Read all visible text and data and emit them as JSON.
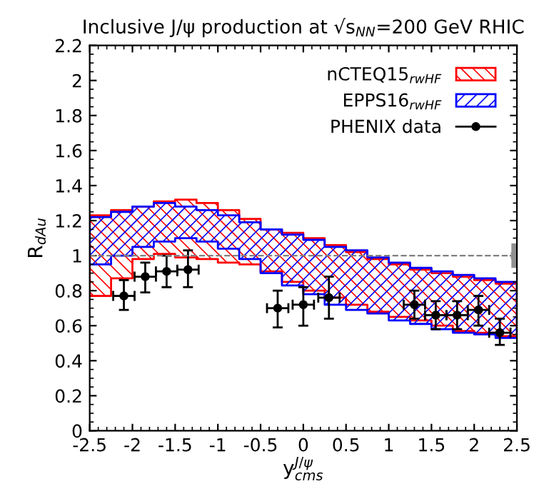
{
  "chart_data": {
    "type": "area",
    "title": "Inclusive J/ψ production at √s$_{NN}$=200 GeV RHIC",
    "xlabel": "y$^{J/ψ}$$_{cms}$",
    "ylabel": "R$_{dAu}$",
    "xlim": [
      -2.5,
      2.5
    ],
    "ylim": [
      0,
      2.2
    ],
    "xticks": [
      -2.5,
      -2,
      -1.5,
      -1,
      -0.5,
      0,
      0.5,
      1,
      1.5,
      2,
      2.5
    ],
    "yticks": [
      0,
      0.2,
      0.4,
      0.6,
      0.8,
      1,
      1.2,
      1.4,
      1.6,
      1.8,
      2,
      2.2
    ],
    "grid": false,
    "legend": "top right",
    "ref_lines": [
      {
        "axis": "y",
        "value": 1,
        "color": "#808080",
        "line_style": "dashed"
      }
    ],
    "series": [
      {
        "name": "nCTEQ15$_{rwHF}$",
        "color": "#ff0000",
        "x": [
          -2.5,
          -2.25,
          -2,
          -1.75,
          -1.5,
          -1.25,
          -1,
          -0.75,
          -0.5,
          -0.25,
          0,
          0.25,
          0.5,
          0.75,
          1,
          1.25,
          1.5,
          1.75,
          2,
          2.25,
          2.5
        ],
        "values": [
          null,
          null,
          null,
          null,
          null,
          null,
          null,
          null,
          null,
          null,
          null,
          null,
          null,
          null,
          null,
          null,
          null,
          null,
          null,
          null,
          null
        ],
        "upper": [
          1.23,
          1.26,
          1.28,
          1.31,
          1.32,
          1.3,
          1.26,
          1.21,
          1.15,
          1.13,
          1.1,
          1.06,
          1.02,
          0.98,
          0.95,
          0.92,
          0.9,
          0.88,
          0.86,
          0.84,
          0.84
        ],
        "lower": [
          0.77,
          0.87,
          0.98,
          1.01,
          0.99,
          0.98,
          0.96,
          0.95,
          0.91,
          0.85,
          0.8,
          0.76,
          0.72,
          0.68,
          0.65,
          0.63,
          0.6,
          0.57,
          0.56,
          0.54,
          0.54
        ]
      },
      {
        "name": "EPPS16$_{rwHF}$",
        "color": "#0000ff",
        "x": [
          -2.5,
          -2.25,
          -2,
          -1.75,
          -1.5,
          -1.25,
          -1,
          -0.75,
          -0.5,
          -0.25,
          0,
          0.25,
          0.5,
          0.75,
          1,
          1.25,
          1.5,
          1.75,
          2,
          2.25,
          2.5
        ],
        "values": [
          null,
          null,
          null,
          null,
          null,
          null,
          null,
          null,
          null,
          null,
          null,
          null,
          null,
          null,
          null,
          null,
          null,
          null,
          null,
          null,
          null
        ],
        "upper": [
          1.22,
          1.25,
          1.28,
          1.3,
          1.28,
          1.26,
          1.23,
          1.19,
          1.15,
          1.12,
          1.09,
          1.05,
          1.03,
          0.99,
          0.96,
          0.93,
          0.91,
          0.89,
          0.87,
          0.85,
          0.85
        ],
        "lower": [
          0.95,
          1.0,
          1.05,
          1.08,
          1.1,
          1.08,
          1.04,
          0.98,
          0.9,
          0.83,
          0.78,
          0.72,
          0.69,
          0.67,
          0.63,
          0.61,
          0.58,
          0.56,
          0.55,
          0.53,
          0.53
        ]
      },
      {
        "name": "PHENIX data",
        "type": "scatter",
        "color": "#000000",
        "marker": "circle",
        "x": [
          -2.1,
          -1.85,
          -1.6,
          -1.35,
          -0.3,
          0.0,
          0.3,
          1.3,
          1.55,
          1.8,
          2.05,
          2.3
        ],
        "values": [
          0.77,
          0.88,
          0.91,
          0.92,
          0.7,
          0.72,
          0.76,
          0.72,
          0.66,
          0.66,
          0.69,
          0.56
        ],
        "errors": [
          [
            0.69,
            0.86
          ],
          [
            0.79,
            0.96
          ],
          [
            0.82,
            1.0
          ],
          [
            0.82,
            1.03
          ],
          [
            0.59,
            0.8
          ],
          [
            0.6,
            0.82
          ],
          [
            0.64,
            0.88
          ],
          [
            0.64,
            0.8
          ],
          [
            0.58,
            0.74
          ],
          [
            0.58,
            0.74
          ],
          [
            0.6,
            0.77
          ],
          [
            0.49,
            0.64
          ]
        ],
        "xerrors": [
          0.125,
          0.125,
          0.125,
          0.125,
          0.125,
          0.125,
          0.125,
          0.125,
          0.125,
          0.125,
          0.125,
          0.125
        ]
      },
      {
        "type": "scatter",
        "color": "#909090",
        "marker": "square",
        "x": [
          2.47
        ],
        "values": [
          1.0
        ],
        "errors": [
          [
            0.93,
            1.07
          ]
        ]
      }
    ]
  }
}
